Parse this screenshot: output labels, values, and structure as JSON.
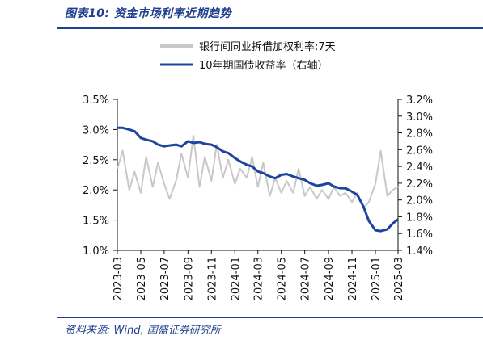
{
  "header": {
    "title": "图表10:  资金市场利率近期趋势"
  },
  "footer": {
    "source": "资料来源:  Wind, 国盛证券研究所"
  },
  "colors": {
    "accent": "#1f3f8f",
    "rate_series": "#c8c8c8",
    "bond_series": "#1f44a0"
  },
  "chart_data": {
    "type": "line",
    "title": "",
    "legend_position": "top",
    "grid": false,
    "x_tick_labels": [
      "2023-03",
      "2023-05",
      "2023-07",
      "2023-09",
      "2023-11",
      "2024-01",
      "2024-03",
      "2024-05",
      "2024-07",
      "2024-09",
      "2024-11",
      "2025-01",
      "2025-03"
    ],
    "x_range": [
      "2023-03",
      "2025-03"
    ],
    "left_axis": {
      "ylim": [
        1.0,
        3.5
      ],
      "ticks": [
        "1.0%",
        "1.5%",
        "2.0%",
        "2.5%",
        "3.0%",
        "3.5%"
      ]
    },
    "right_axis": {
      "ylim": [
        1.4,
        3.2
      ],
      "ticks": [
        "1.4%",
        "1.6%",
        "1.8%",
        "2.0%",
        "2.2%",
        "2.4%",
        "2.6%",
        "2.8%",
        "3.0%",
        "3.2%"
      ]
    },
    "series": [
      {
        "name": "银行间同业拆借加权利率:7天",
        "axis": "left",
        "x": [
          "2023-03",
          "2023-03-15",
          "2023-04",
          "2023-04-15",
          "2023-05",
          "2023-05-15",
          "2023-06",
          "2023-06-15",
          "2023-07",
          "2023-07-15",
          "2023-08",
          "2023-08-15",
          "2023-09",
          "2023-09-15",
          "2023-10",
          "2023-10-15",
          "2023-11",
          "2023-11-15",
          "2023-12",
          "2023-12-15",
          "2024-01",
          "2024-01-15",
          "2024-02",
          "2024-02-15",
          "2024-03",
          "2024-03-15",
          "2024-04",
          "2024-04-15",
          "2024-05",
          "2024-05-15",
          "2024-06",
          "2024-06-15",
          "2024-07",
          "2024-07-15",
          "2024-08",
          "2024-08-15",
          "2024-09",
          "2024-09-15",
          "2024-10",
          "2024-10-15",
          "2024-11",
          "2024-11-15",
          "2024-12",
          "2024-12-15",
          "2025-01",
          "2025-01-15",
          "2025-02",
          "2025-02-15",
          "2025-03"
        ],
        "y": [
          2.35,
          2.65,
          2.0,
          2.3,
          1.95,
          2.55,
          2.05,
          2.45,
          2.1,
          1.85,
          2.15,
          2.6,
          2.2,
          2.9,
          2.05,
          2.55,
          2.15,
          2.75,
          2.2,
          2.5,
          2.1,
          2.35,
          2.2,
          2.55,
          2.05,
          2.45,
          1.9,
          2.2,
          1.95,
          2.15,
          1.95,
          2.35,
          1.9,
          2.05,
          1.85,
          2.0,
          1.85,
          2.05,
          1.9,
          1.95,
          1.8,
          1.95,
          1.7,
          1.8,
          2.1,
          2.65,
          1.9,
          2.0,
          2.05
        ]
      },
      {
        "name": "10年期国债收益率（右轴）",
        "axis": "right",
        "x": [
          "2023-03",
          "2023-03-15",
          "2023-04",
          "2023-04-15",
          "2023-05",
          "2023-05-15",
          "2023-06",
          "2023-06-15",
          "2023-07",
          "2023-07-15",
          "2023-08",
          "2023-08-15",
          "2023-09",
          "2023-09-15",
          "2023-10",
          "2023-10-15",
          "2023-11",
          "2023-11-15",
          "2023-12",
          "2023-12-15",
          "2024-01",
          "2024-01-15",
          "2024-02",
          "2024-02-15",
          "2024-03",
          "2024-03-15",
          "2024-04",
          "2024-04-15",
          "2024-05",
          "2024-05-15",
          "2024-06",
          "2024-06-15",
          "2024-07",
          "2024-07-15",
          "2024-08",
          "2024-08-15",
          "2024-09",
          "2024-09-15",
          "2024-10",
          "2024-10-15",
          "2024-11",
          "2024-11-15",
          "2024-12",
          "2024-12-15",
          "2025-01",
          "2025-01-15",
          "2025-02",
          "2025-02-15",
          "2025-03"
        ],
        "y": [
          2.86,
          2.86,
          2.84,
          2.82,
          2.74,
          2.72,
          2.7,
          2.66,
          2.64,
          2.65,
          2.66,
          2.64,
          2.7,
          2.68,
          2.69,
          2.67,
          2.66,
          2.63,
          2.58,
          2.56,
          2.5,
          2.46,
          2.42,
          2.4,
          2.34,
          2.32,
          2.28,
          2.26,
          2.3,
          2.31,
          2.28,
          2.26,
          2.24,
          2.2,
          2.17,
          2.18,
          2.2,
          2.16,
          2.14,
          2.14,
          2.1,
          2.06,
          1.92,
          1.75,
          1.64,
          1.63,
          1.65,
          1.72,
          1.77
        ]
      }
    ]
  }
}
